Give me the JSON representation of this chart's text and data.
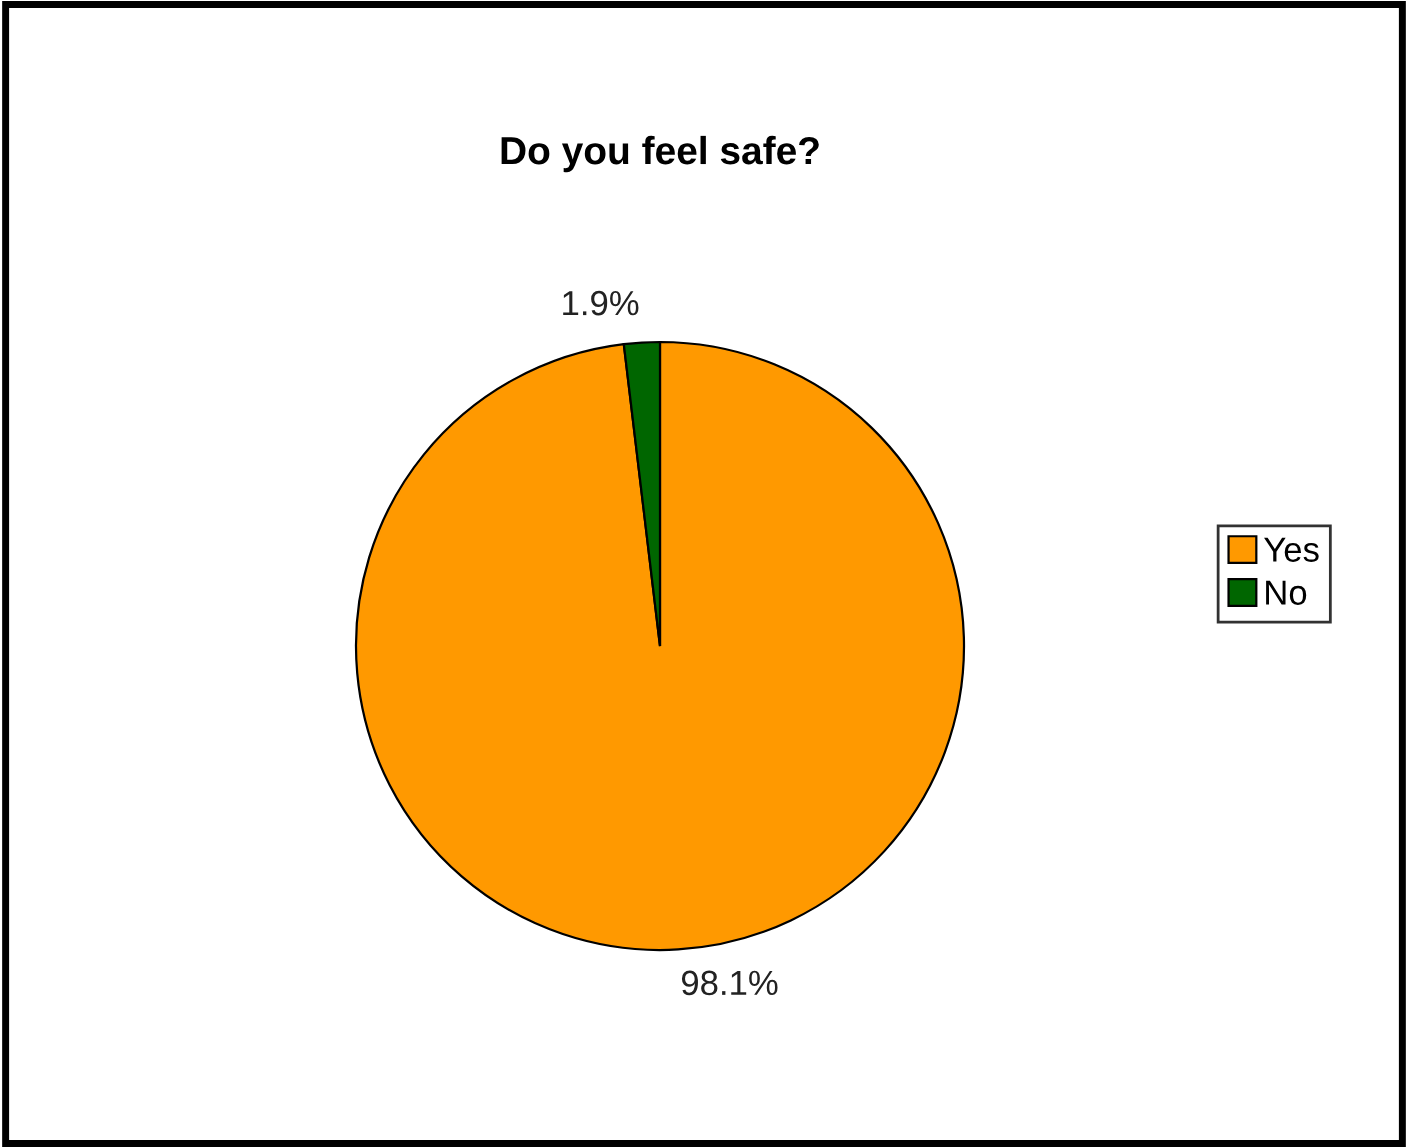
{
  "chart_data": {
    "type": "pie",
    "title": "Do you feel safe?",
    "categories": [
      "Yes",
      "No"
    ],
    "values": [
      98.1,
      1.9
    ],
    "colors": [
      "#ff9900",
      "#006600"
    ],
    "value_labels": [
      "98.1%",
      "1.9%"
    ],
    "legend": "right"
  }
}
